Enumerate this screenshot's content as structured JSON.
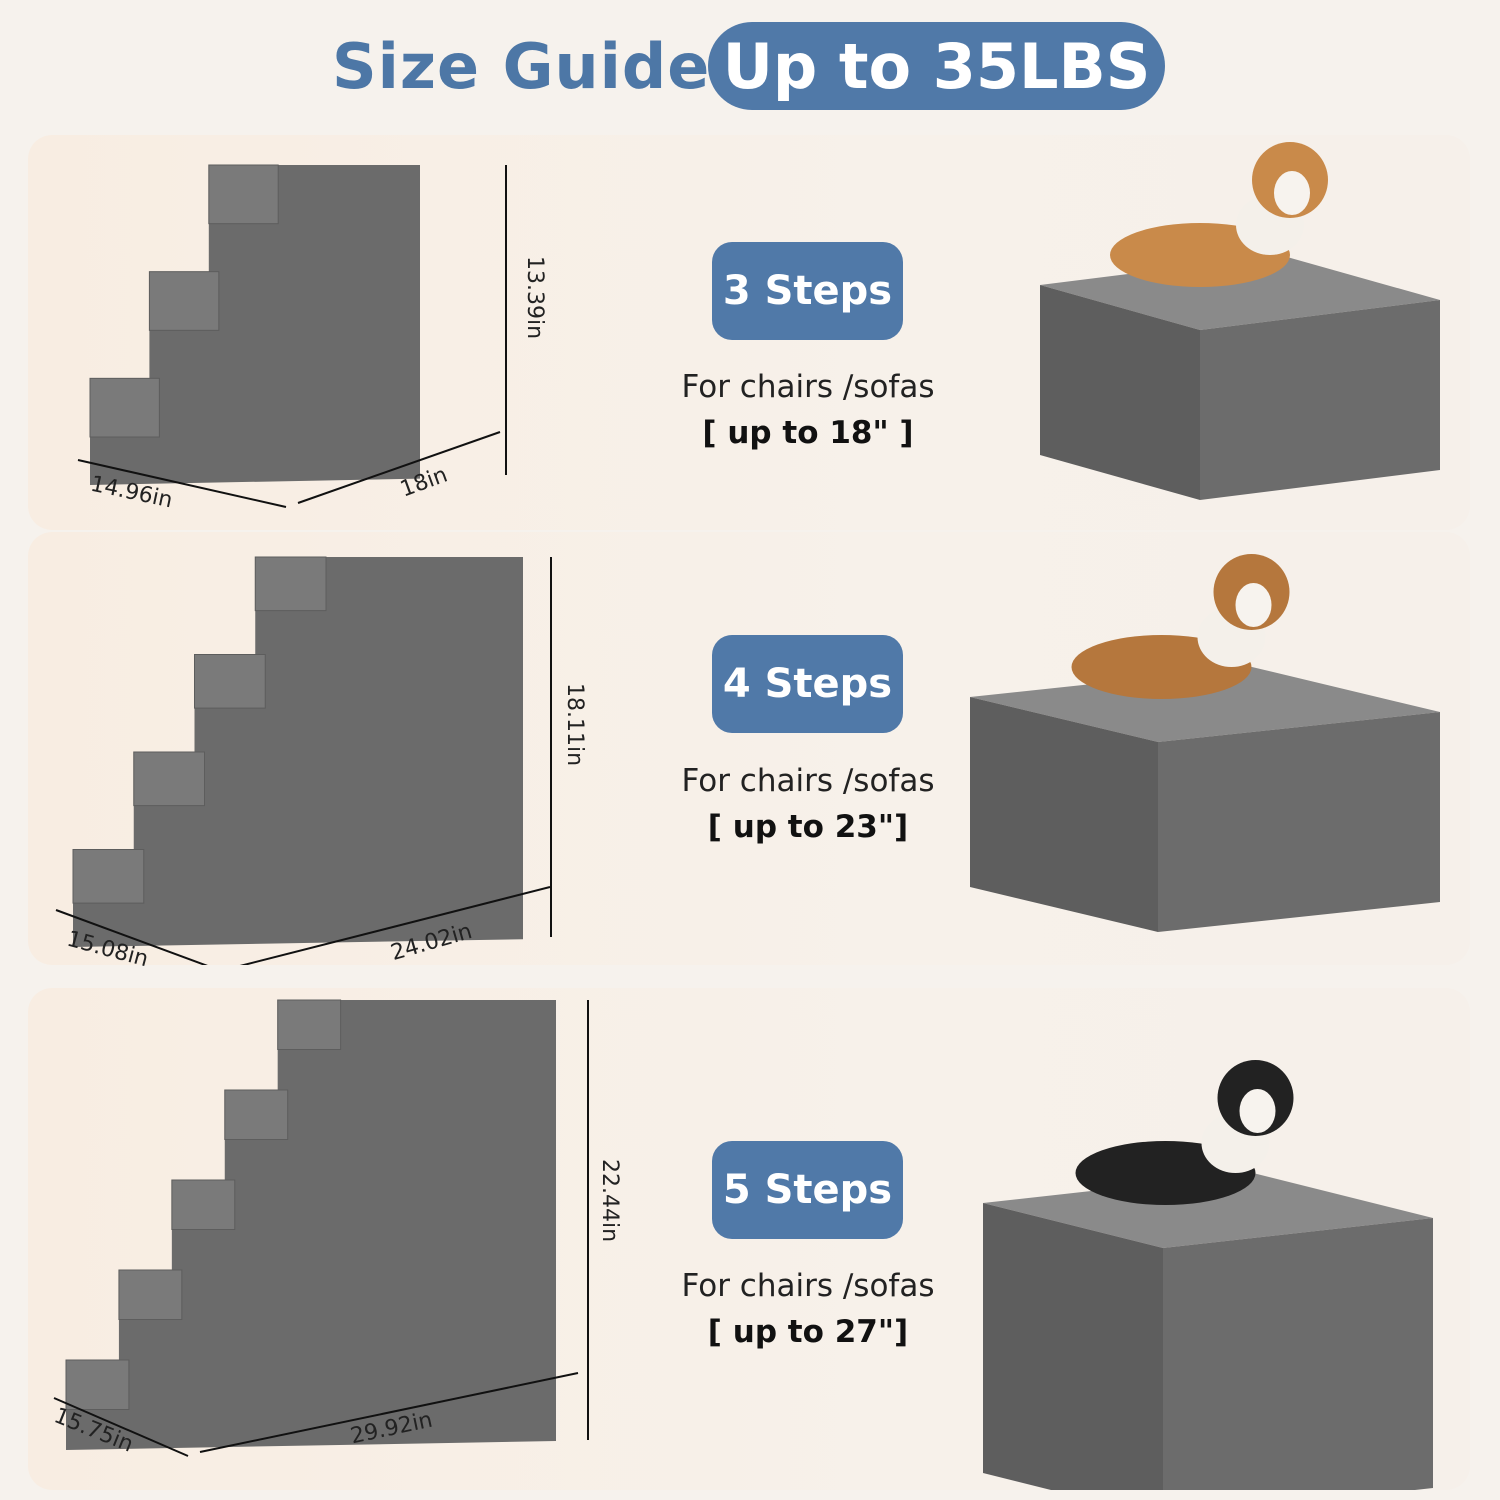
{
  "header": {
    "title": "Size Guide",
    "capacity": "Up to 35LBS"
  },
  "colors": {
    "accent": "#5079a8",
    "stair": "#6b6b6b",
    "background": "#f6f2ed"
  },
  "products": [
    {
      "steps": "3 Steps",
      "use": "For chairs /sofas",
      "limit": "[ up to 18\" ]",
      "height": "13.39in",
      "width": "14.96in",
      "length": "18in",
      "dog": "corgi"
    },
    {
      "steps": "4 Steps",
      "use": "For chairs /sofas",
      "limit": "[ up to  23\"]",
      "height": "18.11in",
      "width": "15.08in",
      "length": "24.02in",
      "dog": "beagle"
    },
    {
      "steps": "5 Steps",
      "use": "For chairs /sofas",
      "limit": "[ up to  27\"]",
      "height": "22.44in",
      "width": "15.75in",
      "length": "29.92in",
      "dog": "border-collie"
    }
  ]
}
